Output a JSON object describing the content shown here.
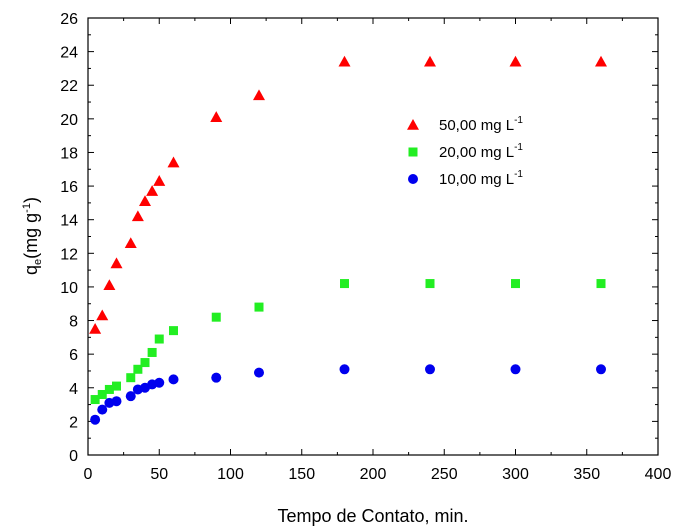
{
  "chart_data": {
    "type": "scatter",
    "xlabel": "Tempo de Contato, min.",
    "ylabel": {
      "main": "q",
      "sub": "e",
      "paren_open": "(mg g",
      "sup": "-1",
      "paren_close": ")"
    },
    "xlim": [
      0,
      400
    ],
    "ylim": [
      0,
      26
    ],
    "xticks": [
      0,
      50,
      100,
      150,
      200,
      250,
      300,
      350,
      400
    ],
    "yticks": [
      0,
      2,
      4,
      6,
      8,
      10,
      12,
      14,
      16,
      18,
      20,
      22,
      24,
      26
    ],
    "grid": false,
    "legend_position": "upper-right",
    "series": [
      {
        "name": "50,00 mg L",
        "name_sup": "-1",
        "marker": "triangle",
        "color": "#ff0000",
        "x": [
          5,
          10,
          15,
          20,
          30,
          35,
          40,
          45,
          50,
          60,
          90,
          120,
          180,
          240,
          300,
          360
        ],
        "y": [
          7.5,
          8.3,
          10.1,
          11.4,
          12.6,
          14.2,
          15.1,
          15.7,
          16.3,
          17.4,
          20.1,
          21.4,
          23.4,
          23.4,
          23.4,
          23.4
        ]
      },
      {
        "name": "20,00 mg L",
        "name_sup": "-1",
        "marker": "square",
        "color": "#22ee22",
        "x": [
          5,
          10,
          15,
          20,
          30,
          35,
          40,
          45,
          50,
          60,
          90,
          120,
          180,
          240,
          300,
          360
        ],
        "y": [
          3.3,
          3.6,
          3.9,
          4.1,
          4.6,
          5.1,
          5.5,
          6.1,
          6.9,
          7.4,
          8.2,
          8.8,
          10.2,
          10.2,
          10.2,
          10.2
        ]
      },
      {
        "name": "10,00 mg L",
        "name_sup": "-1",
        "marker": "circle",
        "color": "#0000ee",
        "x": [
          5,
          10,
          15,
          20,
          30,
          35,
          40,
          45,
          50,
          60,
          90,
          120,
          180,
          240,
          300,
          360
        ],
        "y": [
          2.1,
          2.7,
          3.1,
          3.2,
          3.5,
          3.9,
          4.0,
          4.2,
          4.3,
          4.5,
          4.6,
          4.9,
          5.1,
          5.1,
          5.1,
          5.1
        ]
      }
    ]
  }
}
